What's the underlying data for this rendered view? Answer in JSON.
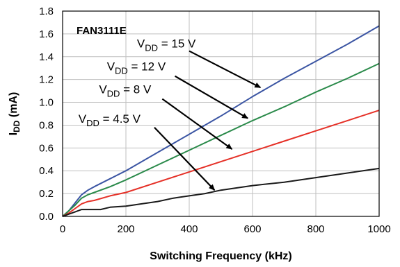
{
  "chart_data": {
    "type": "line",
    "title": "FAN3111E",
    "xlabel": "Switching Frequency (kHz)",
    "ylabel": {
      "main": "I",
      "sub": "DD",
      "unit": " (mA)"
    },
    "xlim": [
      0,
      1000
    ],
    "ylim": [
      0,
      1.8
    ],
    "x_ticks": [
      0,
      200,
      400,
      600,
      800,
      1000
    ],
    "y_ticks": [
      0.0,
      0.2,
      0.4,
      0.6,
      0.8,
      1.0,
      1.2,
      1.4,
      1.6,
      1.8
    ],
    "x_tick_labels": [
      "0",
      "200",
      "400",
      "600",
      "800",
      "1000"
    ],
    "y_tick_labels": [
      "0.0",
      "0.2",
      "0.4",
      "0.6",
      "0.8",
      "1.0",
      "1.2",
      "1.4",
      "1.6",
      "1.8"
    ],
    "grid": true,
    "series": [
      {
        "label": {
          "pre": "V",
          "sub": "DD",
          "post": " = 15 V"
        },
        "color": "#3b55a3",
        "x": [
          0,
          20,
          40,
          60,
          80,
          100,
          150,
          200,
          300,
          400,
          500,
          600,
          700,
          800,
          900,
          1000
        ],
        "y": [
          0.0,
          0.05,
          0.12,
          0.19,
          0.23,
          0.26,
          0.33,
          0.4,
          0.56,
          0.72,
          0.88,
          1.05,
          1.21,
          1.36,
          1.51,
          1.67
        ]
      },
      {
        "label": {
          "pre": "V",
          "sub": "DD",
          "post": " = 12 V"
        },
        "color": "#2a8a4a",
        "x": [
          0,
          20,
          40,
          60,
          80,
          100,
          150,
          200,
          300,
          400,
          500,
          600,
          700,
          800,
          900,
          1000
        ],
        "y": [
          0.0,
          0.05,
          0.1,
          0.16,
          0.19,
          0.21,
          0.26,
          0.32,
          0.45,
          0.58,
          0.71,
          0.84,
          0.96,
          1.09,
          1.21,
          1.34
        ]
      },
      {
        "label": {
          "pre": "V",
          "sub": "DD",
          "post": " = 8 V"
        },
        "color": "#e53027",
        "x": [
          0,
          20,
          40,
          60,
          80,
          100,
          150,
          200,
          300,
          400,
          500,
          600,
          700,
          800,
          900,
          1000
        ],
        "y": [
          0.0,
          0.03,
          0.07,
          0.11,
          0.13,
          0.14,
          0.18,
          0.21,
          0.3,
          0.39,
          0.48,
          0.57,
          0.66,
          0.75,
          0.84,
          0.93
        ]
      },
      {
        "label": {
          "pre": "V",
          "sub": "DD",
          "post": " = 4.5 V"
        },
        "color": "#1a1a1a",
        "x": [
          0,
          20,
          40,
          60,
          80,
          100,
          120,
          150,
          200,
          250,
          300,
          350,
          400,
          450,
          500,
          600,
          700,
          800,
          900,
          1000
        ],
        "y": [
          0.0,
          0.02,
          0.04,
          0.06,
          0.06,
          0.06,
          0.06,
          0.08,
          0.09,
          0.11,
          0.13,
          0.16,
          0.18,
          0.2,
          0.23,
          0.27,
          0.3,
          0.34,
          0.38,
          0.42
        ]
      }
    ],
    "annotations": [
      {
        "series": 0,
        "text_at": [
          235,
          1.48
        ],
        "arrow_from": [
          400,
          1.45
        ],
        "arrow_to": [
          625,
          1.13
        ]
      },
      {
        "series": 1,
        "text_at": [
          140,
          1.28
        ],
        "arrow_from": [
          355,
          1.23
        ],
        "arrow_to": [
          585,
          0.86
        ]
      },
      {
        "series": 2,
        "text_at": [
          115,
          1.08
        ],
        "arrow_from": [
          315,
          1.03
        ],
        "arrow_to": [
          535,
          0.59
        ]
      },
      {
        "series": 3,
        "text_at": [
          50,
          0.82
        ],
        "arrow_from": [
          290,
          0.78
        ],
        "arrow_to": [
          480,
          0.23
        ]
      }
    ]
  }
}
